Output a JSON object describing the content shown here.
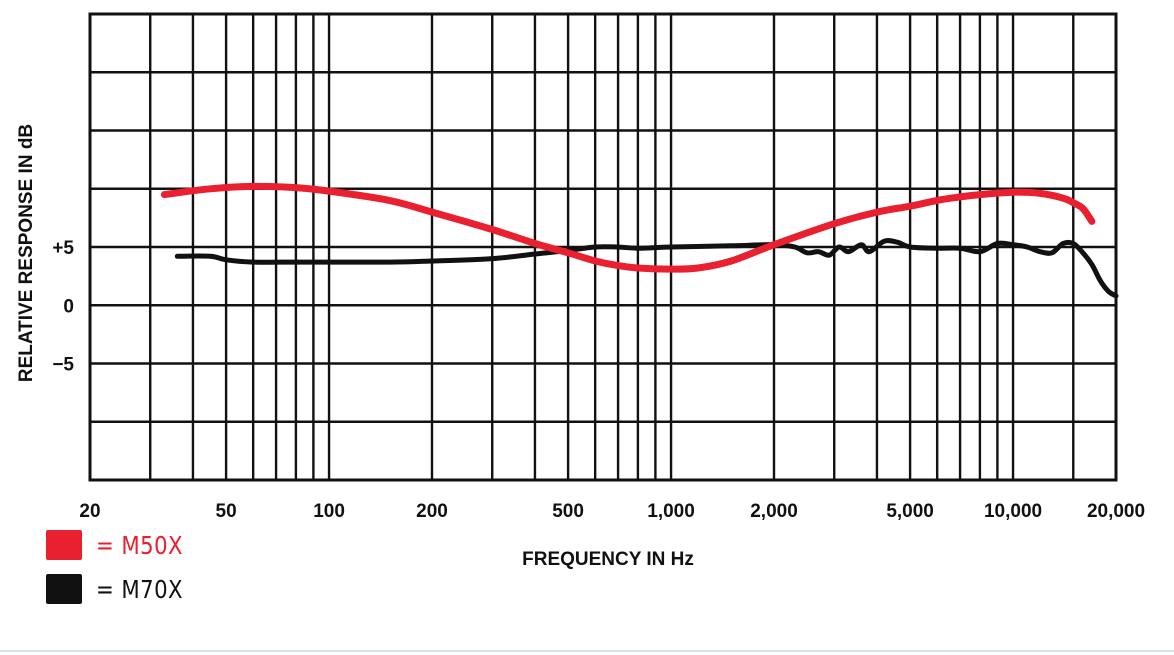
{
  "chart_data": {
    "type": "line",
    "title": "",
    "xlabel": "FREQUENCY IN Hz",
    "ylabel": "RELATIVE RESPONSE IN dB",
    "x_scale": "log",
    "xlim": [
      20,
      20000
    ],
    "ylim": [
      -15,
      25
    ],
    "grid": true,
    "x_ticks": [
      {
        "value": 20,
        "label": "20"
      },
      {
        "value": 50,
        "label": "50"
      },
      {
        "value": 100,
        "label": "100"
      },
      {
        "value": 200,
        "label": "200"
      },
      {
        "value": 500,
        "label": "500"
      },
      {
        "value": 1000,
        "label": "1,000"
      },
      {
        "value": 2000,
        "label": "2,000"
      },
      {
        "value": 5000,
        "label": "5,000"
      },
      {
        "value": 10000,
        "label": "10,000"
      },
      {
        "value": 20000,
        "label": "20,000"
      }
    ],
    "y_ticks": [
      {
        "value": 5,
        "label": "+5"
      },
      {
        "value": 0,
        "label": "0"
      },
      {
        "value": -5,
        "label": "−5"
      }
    ],
    "x_grid_values": [
      30,
      40,
      50,
      60,
      70,
      80,
      90,
      100,
      200,
      300,
      400,
      500,
      600,
      700,
      800,
      900,
      1000,
      2000,
      3000,
      4000,
      5000,
      6000,
      7000,
      8000,
      9000,
      10000,
      15000
    ],
    "y_grid_values": [
      -10,
      -5,
      0,
      5,
      10,
      15,
      20
    ],
    "legend_position": "bottom-left",
    "series": [
      {
        "name": "M50X",
        "color": "#e8202f",
        "points": [
          [
            33,
            9.5
          ],
          [
            45,
            10.0
          ],
          [
            60,
            10.2
          ],
          [
            80,
            10.1
          ],
          [
            100,
            9.8
          ],
          [
            150,
            9.0
          ],
          [
            200,
            8.0
          ],
          [
            300,
            6.5
          ],
          [
            400,
            5.3
          ],
          [
            500,
            4.5
          ],
          [
            600,
            3.8
          ],
          [
            700,
            3.4
          ],
          [
            800,
            3.2
          ],
          [
            1000,
            3.1
          ],
          [
            1200,
            3.2
          ],
          [
            1500,
            3.8
          ],
          [
            2000,
            5.2
          ],
          [
            3000,
            7.0
          ],
          [
            4000,
            8.0
          ],
          [
            5000,
            8.5
          ],
          [
            6000,
            9.0
          ],
          [
            7000,
            9.3
          ],
          [
            8000,
            9.5
          ],
          [
            10000,
            9.7
          ],
          [
            12000,
            9.6
          ],
          [
            14000,
            9.2
          ],
          [
            15000,
            8.8
          ],
          [
            16000,
            8.3
          ],
          [
            17000,
            7.2
          ]
        ]
      },
      {
        "name": "M70X",
        "color": "#111111",
        "points": [
          [
            36,
            4.2
          ],
          [
            45,
            4.2
          ],
          [
            50,
            3.9
          ],
          [
            60,
            3.7
          ],
          [
            80,
            3.7
          ],
          [
            100,
            3.7
          ],
          [
            150,
            3.7
          ],
          [
            200,
            3.8
          ],
          [
            300,
            4.0
          ],
          [
            400,
            4.4
          ],
          [
            500,
            4.7
          ],
          [
            600,
            5.0
          ],
          [
            700,
            5.0
          ],
          [
            800,
            4.9
          ],
          [
            1000,
            5.0
          ],
          [
            1500,
            5.1
          ],
          [
            2000,
            5.2
          ],
          [
            2300,
            5.0
          ],
          [
            2500,
            4.5
          ],
          [
            2700,
            4.6
          ],
          [
            2900,
            4.3
          ],
          [
            3100,
            5.0
          ],
          [
            3300,
            4.6
          ],
          [
            3600,
            5.2
          ],
          [
            3800,
            4.6
          ],
          [
            4200,
            5.5
          ],
          [
            4600,
            5.4
          ],
          [
            5000,
            5.0
          ],
          [
            6000,
            4.9
          ],
          [
            7000,
            4.9
          ],
          [
            8000,
            4.6
          ],
          [
            9000,
            5.3
          ],
          [
            10000,
            5.2
          ],
          [
            11000,
            5.0
          ],
          [
            12000,
            4.6
          ],
          [
            13000,
            4.5
          ],
          [
            14000,
            5.3
          ],
          [
            15000,
            5.3
          ],
          [
            16000,
            4.5
          ],
          [
            17000,
            3.5
          ],
          [
            18000,
            2.1
          ],
          [
            19000,
            1.2
          ],
          [
            20000,
            0.8
          ]
        ]
      }
    ]
  },
  "legend": [
    {
      "label": "= M50X",
      "color": "#e8202f",
      "text_color": "#e8202f"
    },
    {
      "label": "= M70X",
      "color": "#111111",
      "text_color": "#111111"
    }
  ]
}
